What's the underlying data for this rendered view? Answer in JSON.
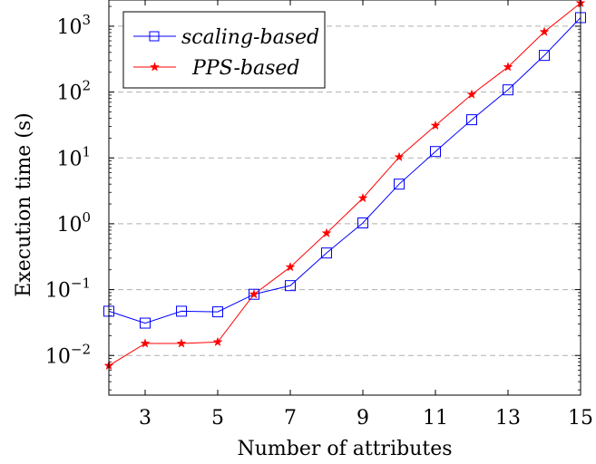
{
  "chart_data": {
    "type": "line",
    "title": "",
    "xlabel": "Number of attributes",
    "ylabel": "Execution time (s)",
    "yscale": "log",
    "xlim": [
      2,
      15
    ],
    "ylim": [
      0.0025,
      2500
    ],
    "xticks": [
      3,
      5,
      7,
      9,
      11,
      13,
      15
    ],
    "yticks": [
      {
        "value": 0.01,
        "base": "10",
        "exp": "−2"
      },
      {
        "value": 0.1,
        "base": "10",
        "exp": "−1"
      },
      {
        "value": 1,
        "base": "10",
        "exp": "0"
      },
      {
        "value": 10,
        "base": "10",
        "exp": "1"
      },
      {
        "value": 100,
        "base": "10",
        "exp": "2"
      },
      {
        "value": 1000,
        "base": "10",
        "exp": "3"
      }
    ],
    "grid": "horizontal dashed at major y ticks",
    "legend_position": "top-left",
    "series": [
      {
        "name": "scaling-based",
        "color": "#0000ff",
        "marker": "square",
        "x": [
          2,
          3,
          4,
          5,
          6,
          7,
          8,
          9,
          10,
          11,
          12,
          13,
          14,
          15
        ],
        "y": [
          0.047,
          0.031,
          0.047,
          0.046,
          0.085,
          0.115,
          0.36,
          1.03,
          4.0,
          12.5,
          38,
          108,
          360,
          1350
        ]
      },
      {
        "name": "PPS-based",
        "color": "#ff0000",
        "marker": "star",
        "x": [
          2,
          3,
          4,
          5,
          6,
          7,
          8,
          9,
          10,
          11,
          12,
          13,
          14,
          15
        ],
        "y": [
          0.007,
          0.0152,
          0.0152,
          0.016,
          0.085,
          0.22,
          0.72,
          2.45,
          10.3,
          31,
          92,
          240,
          820,
          2250
        ]
      }
    ]
  }
}
